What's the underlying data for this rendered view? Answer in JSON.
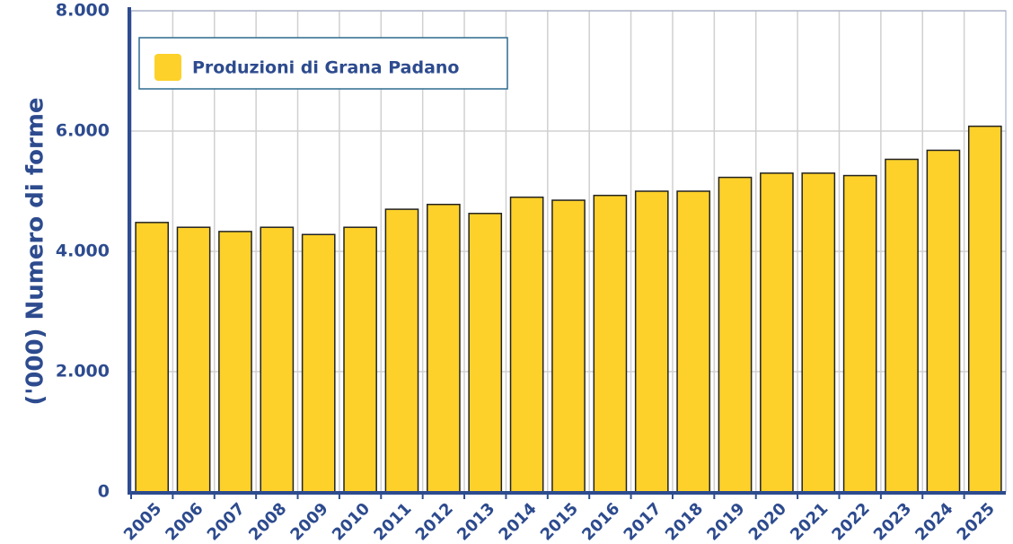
{
  "chart_data": {
    "type": "bar",
    "y_label": "('000) Numero di forme",
    "categories": [
      "2005",
      "2006",
      "2007",
      "2008",
      "2009",
      "2010",
      "2011",
      "2012",
      "2013",
      "2014",
      "2015",
      "2016",
      "2017",
      "2018",
      "2019",
      "2020",
      "2021",
      "2022",
      "2023",
      "2024",
      "2025"
    ],
    "series": [
      {
        "name": "Produzioni di Grana Padano",
        "color": "#fdd12a",
        "values": [
          4480,
          4400,
          4330,
          4400,
          4280,
          4400,
          4700,
          4780,
          4630,
          4900,
          4850,
          4930,
          5000,
          5000,
          5230,
          5300,
          5300,
          5260,
          5530,
          5680,
          6080
        ]
      }
    ],
    "ylim": [
      0,
      8000
    ],
    "yticks": [
      0,
      {
        "value": 2000,
        "label": "2.000"
      },
      {
        "value": 4000,
        "label": "4.000"
      },
      {
        "value": 6000,
        "label": "6.000"
      },
      {
        "value": 8000,
        "label": "8.000"
      }
    ],
    "grid": true,
    "legend": "top-left"
  }
}
